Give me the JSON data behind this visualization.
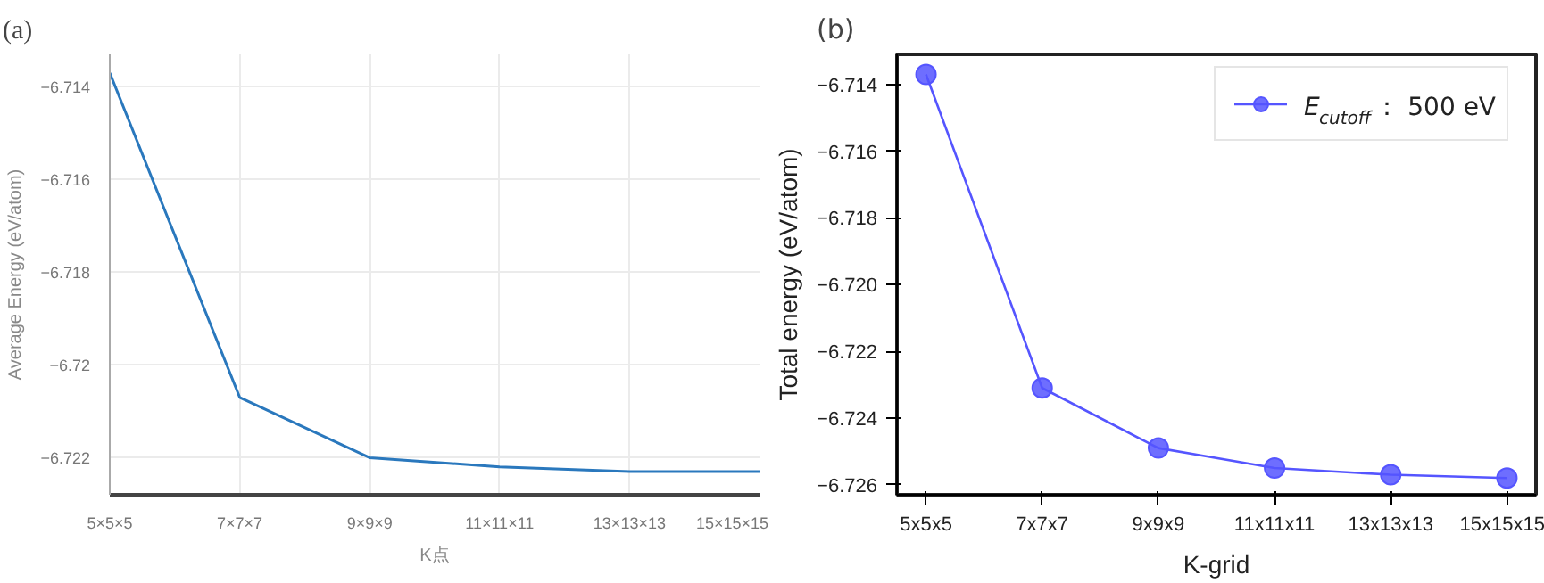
{
  "chart_data": [
    {
      "type": "line",
      "title": "(a)",
      "xlabel": "K点",
      "ylabel": "Average Energy (eV/atom)",
      "categories": [
        "5×5×5",
        "7×7×7",
        "9×9×9",
        "11×11×11",
        "13×13×13",
        "15×15×15"
      ],
      "series": [
        {
          "color": "#2a78bd",
          "values": [
            -6.7137,
            -6.7207,
            -6.722,
            -6.7222,
            -6.7223,
            -6.7223
          ]
        }
      ],
      "ylim": [
        -6.7228,
        -6.7133
      ],
      "yticks": [
        -6.722,
        -6.72,
        -6.718,
        -6.716,
        -6.714
      ],
      "grid": true
    },
    {
      "type": "line",
      "title": "(b)",
      "xlabel": "K-grid",
      "ylabel": "Total energy (eV/atom)",
      "categories": [
        "5x5x5",
        "7x7x7",
        "9x9x9",
        "11x11x11",
        "13x13x13",
        "15x15x15"
      ],
      "series": [
        {
          "name": "E$_{cutoff}$： 500 eV",
          "color": "#5555ff",
          "values": [
            -6.7137,
            -6.7231,
            -6.7249,
            -6.7255,
            -6.7257,
            -6.7258
          ]
        }
      ],
      "ylim": [
        -6.7263,
        -6.7131
      ],
      "yticks": [
        {
          "value": -6.726,
          "label": "−6.726"
        },
        {
          "value": -6.724,
          "label": "−6.724"
        },
        {
          "value": -6.722,
          "label": "−6.722"
        },
        {
          "value": -6.72,
          "label": "−6.720"
        },
        {
          "value": -6.718,
          "label": "−6.718"
        },
        {
          "value": -6.716,
          "label": "−6.716"
        },
        {
          "value": -6.714,
          "label": "−6.714"
        }
      ],
      "grid": false,
      "legend": "top right",
      "marker": "circle"
    }
  ]
}
